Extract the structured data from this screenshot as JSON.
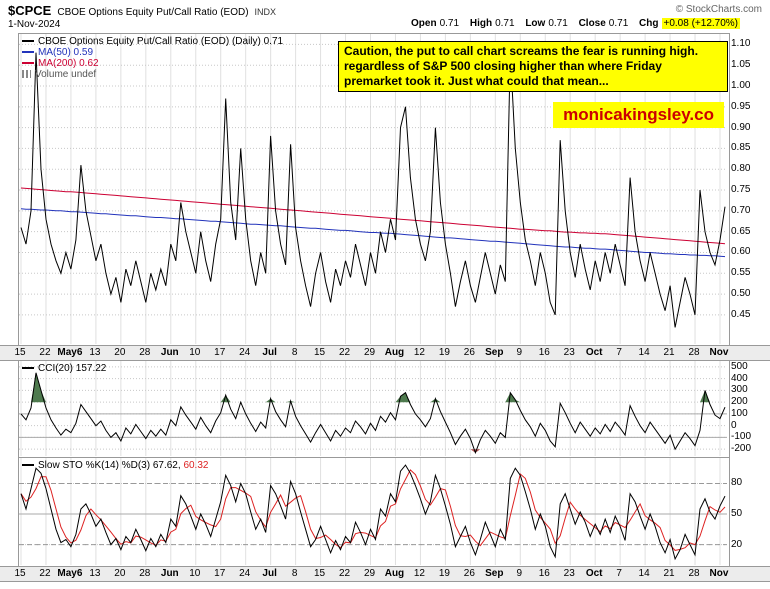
{
  "header": {
    "symbol": "$CPCE",
    "name": "CBOE Options Equity Put/Call Ratio (EOD)",
    "exchange": "INDX",
    "copyright": "© StockCharts.com",
    "date": "1-Nov-2024",
    "quote": {
      "open_label": "Open",
      "open": "0.71",
      "high_label": "High",
      "high": "0.71",
      "low_label": "Low",
      "low": "0.71",
      "close_label": "Close",
      "close": "0.71",
      "chg_label": "Chg",
      "chg": "+0.08 (+12.70%)"
    }
  },
  "main_legend": {
    "series1": "CBOE Options Equity Put/Call Ratio (EOD) (Daily) 0.71",
    "series2": "MA(50) 0.59",
    "series3": "MA(200) 0.62",
    "volume": "Volume undef"
  },
  "annotation": {
    "text": "Caution, the put to call chart screams the fear is running high. regardless of S&P 500 closing higher than where Friday premarket took it. Just what could that mean...",
    "watermark": "monicakingsley.co"
  },
  "cci_legend": "CCI(20) 157.22",
  "sto_legend": {
    "k": "Slow STO %K(14) %D(3) 67.62,",
    "d": "60.32"
  },
  "colors": {
    "cpce": "#000000",
    "ma50": "#2233bb",
    "ma200": "#cc0033",
    "cci": "#000000",
    "cci_fill_high": "#4e7a4e",
    "cci_fill_low": "#b05050",
    "sto_k": "#000000",
    "sto_d": "#dd2222",
    "annotation_bg": "#ffff00",
    "watermark": "#cc0000",
    "highlight": "#ffff00"
  },
  "chart_data": [
    {
      "type": "line",
      "title": "CBOE Options Equity Put/Call Ratio (EOD) (Daily)",
      "ylim": [
        0.38,
        1.125
      ],
      "y_ticks": [
        1.1,
        1.05,
        1.0,
        0.95,
        0.9,
        0.85,
        0.8,
        0.75,
        0.7,
        0.65,
        0.6,
        0.55,
        0.5,
        0.45
      ],
      "x_ticks": [
        "15",
        "22",
        "May6",
        "13",
        "20",
        "28",
        "Jun",
        "10",
        "17",
        "24",
        "Jul",
        "8",
        "15",
        "22",
        "29",
        "Aug",
        "12",
        "19",
        "26",
        "Sep",
        "9",
        "16",
        "23",
        "Oct",
        "7",
        "14",
        "21",
        "28",
        "Nov"
      ],
      "series": [
        {
          "name": "CPCE",
          "color": "#000000",
          "last": 0.71,
          "values": [
            0.66,
            0.62,
            0.7,
            1.08,
            0.8,
            0.68,
            0.62,
            0.58,
            0.55,
            0.6,
            0.56,
            0.63,
            0.81,
            0.7,
            0.64,
            0.58,
            0.62,
            0.55,
            0.5,
            0.54,
            0.48,
            0.56,
            0.52,
            0.58,
            0.53,
            0.48,
            0.55,
            0.51,
            0.56,
            0.52,
            0.62,
            0.58,
            0.72,
            0.65,
            0.6,
            0.55,
            0.65,
            0.58,
            0.53,
            0.62,
            0.68,
            0.97,
            0.72,
            0.63,
            0.85,
            0.68,
            0.58,
            0.52,
            0.6,
            0.55,
            0.88,
            0.7,
            0.62,
            0.57,
            0.86,
            0.66,
            0.58,
            0.52,
            0.47,
            0.55,
            0.6,
            0.53,
            0.48,
            0.56,
            0.52,
            0.58,
            0.54,
            0.62,
            0.57,
            0.52,
            0.6,
            0.55,
            0.65,
            0.6,
            0.68,
            0.63,
            0.9,
            0.95,
            0.78,
            0.68,
            0.62,
            0.58,
            0.65,
            0.9,
            0.72,
            0.62,
            0.55,
            0.47,
            0.53,
            0.58,
            0.52,
            0.48,
            0.54,
            0.6,
            0.55,
            0.5,
            0.57,
            0.53,
            1.08,
            0.85,
            0.72,
            0.63,
            0.58,
            0.52,
            0.6,
            0.55,
            0.48,
            0.45,
            0.87,
            0.7,
            0.6,
            0.54,
            0.62,
            0.56,
            0.51,
            0.58,
            0.53,
            0.6,
            0.55,
            0.62,
            0.57,
            0.52,
            0.78,
            0.65,
            0.58,
            0.53,
            0.6,
            0.55,
            0.5,
            0.46,
            0.52,
            0.42,
            0.48,
            0.54,
            0.5,
            0.45,
            0.75,
            0.65,
            0.6,
            0.57,
            0.63,
            0.71
          ]
        },
        {
          "name": "MA50",
          "color": "#2233bb",
          "last": 0.59,
          "values": [
            0.705,
            0.704,
            0.704,
            0.703,
            0.702,
            0.702,
            0.701,
            0.7,
            0.7,
            0.699,
            0.698,
            0.698,
            0.697,
            0.696,
            0.695,
            0.694,
            0.693,
            0.693,
            0.692,
            0.691,
            0.69,
            0.689,
            0.688,
            0.688,
            0.687,
            0.686,
            0.685,
            0.684,
            0.684,
            0.683,
            0.682,
            0.681,
            0.681,
            0.68,
            0.679,
            0.678,
            0.677,
            0.676,
            0.675,
            0.675,
            0.674,
            0.673,
            0.672,
            0.671,
            0.67,
            0.669,
            0.668,
            0.668,
            0.667,
            0.666,
            0.665,
            0.664,
            0.664,
            0.663,
            0.662,
            0.661,
            0.66,
            0.659,
            0.658,
            0.658,
            0.657,
            0.656,
            0.655,
            0.654,
            0.653,
            0.653,
            0.652,
            0.651,
            0.65,
            0.649,
            0.648,
            0.648,
            0.647,
            0.646,
            0.646,
            0.645,
            0.644,
            0.643,
            0.642,
            0.641,
            0.64,
            0.639,
            0.638,
            0.637,
            0.636,
            0.635,
            0.635,
            0.634,
            0.633,
            0.632,
            0.631,
            0.63,
            0.629,
            0.628,
            0.627,
            0.627,
            0.626,
            0.625,
            0.624,
            0.623,
            0.622,
            0.621,
            0.62,
            0.619,
            0.618,
            0.617,
            0.616,
            0.615,
            0.614,
            0.613,
            0.613,
            0.612,
            0.611,
            0.61,
            0.61,
            0.609,
            0.608,
            0.608,
            0.607,
            0.606,
            0.605,
            0.604,
            0.603,
            0.602,
            0.601,
            0.6,
            0.6,
            0.599,
            0.598,
            0.597,
            0.597,
            0.596,
            0.595,
            0.595,
            0.594,
            0.594,
            0.593,
            0.593,
            0.592,
            0.592,
            0.591,
            0.59
          ]
        },
        {
          "name": "MA200",
          "color": "#cc0033",
          "last": 0.62,
          "values": [
            0.755,
            0.754,
            0.753,
            0.752,
            0.751,
            0.75,
            0.749,
            0.748,
            0.747,
            0.746,
            0.746,
            0.745,
            0.744,
            0.743,
            0.742,
            0.741,
            0.74,
            0.739,
            0.738,
            0.737,
            0.736,
            0.735,
            0.734,
            0.733,
            0.732,
            0.731,
            0.73,
            0.729,
            0.728,
            0.727,
            0.726,
            0.725,
            0.724,
            0.723,
            0.722,
            0.721,
            0.72,
            0.719,
            0.718,
            0.717,
            0.716,
            0.715,
            0.714,
            0.713,
            0.712,
            0.711,
            0.71,
            0.709,
            0.708,
            0.707,
            0.706,
            0.705,
            0.704,
            0.703,
            0.702,
            0.701,
            0.7,
            0.699,
            0.698,
            0.697,
            0.696,
            0.695,
            0.694,
            0.693,
            0.692,
            0.691,
            0.69,
            0.689,
            0.688,
            0.687,
            0.686,
            0.685,
            0.684,
            0.683,
            0.682,
            0.681,
            0.68,
            0.679,
            0.678,
            0.677,
            0.676,
            0.675,
            0.674,
            0.673,
            0.672,
            0.671,
            0.67,
            0.669,
            0.668,
            0.667,
            0.666,
            0.665,
            0.664,
            0.663,
            0.662,
            0.661,
            0.66,
            0.659,
            0.658,
            0.657,
            0.656,
            0.656,
            0.655,
            0.654,
            0.653,
            0.652,
            0.652,
            0.651,
            0.65,
            0.649,
            0.649,
            0.648,
            0.647,
            0.647,
            0.646,
            0.646,
            0.645,
            0.645,
            0.644,
            0.643,
            0.642,
            0.641,
            0.64,
            0.639,
            0.638,
            0.637,
            0.636,
            0.635,
            0.634,
            0.633,
            0.632,
            0.631,
            0.63,
            0.629,
            0.628,
            0.627,
            0.626,
            0.625,
            0.624,
            0.623,
            0.622,
            0.621
          ]
        }
      ]
    },
    {
      "type": "line",
      "title": "CCI(20)",
      "last_value": 157.22,
      "ylim": [
        -258,
        550
      ],
      "y_ticks": [
        500,
        400,
        300,
        200,
        100,
        0,
        -100,
        -200
      ],
      "solid_lines": [
        100,
        -100
      ],
      "fill_above": 200,
      "fill_above_color": "#4e7a4e",
      "fill_below": -200,
      "fill_below_color": "#b05050",
      "series": [
        {
          "name": "CCI",
          "color": "#000000",
          "values": [
            100,
            50,
            150,
            450,
            300,
            150,
            50,
            -20,
            -80,
            -30,
            -60,
            20,
            180,
            120,
            60,
            0,
            40,
            -40,
            -100,
            -60,
            -130,
            -20,
            -70,
            10,
            -50,
            -110,
            -40,
            -90,
            -30,
            -80,
            50,
            0,
            160,
            90,
            30,
            -30,
            70,
            0,
            -60,
            40,
            110,
            260,
            140,
            60,
            200,
            100,
            20,
            -50,
            30,
            -20,
            230,
            120,
            50,
            -10,
            210,
            80,
            0,
            -70,
            -140,
            -60,
            10,
            -60,
            -130,
            -40,
            -90,
            -20,
            -60,
            40,
            -10,
            -70,
            20,
            -40,
            80,
            30,
            110,
            50,
            250,
            280,
            180,
            100,
            50,
            -10,
            60,
            230,
            120,
            30,
            -60,
            -160,
            -90,
            -30,
            -110,
            -230,
            -120,
            -40,
            -90,
            -150,
            -60,
            -100,
            280,
            220,
            130,
            50,
            -10,
            -90,
            20,
            -40,
            -130,
            -180,
            190,
            110,
            20,
            -60,
            30,
            -30,
            -90,
            -20,
            -70,
            10,
            -50,
            30,
            -20,
            -80,
            170,
            80,
            0,
            -60,
            30,
            -30,
            -90,
            -150,
            -80,
            -200,
            -130,
            -60,
            -110,
            -170,
            -40,
            300,
            180,
            90,
            60,
            157.22
          ]
        }
      ]
    },
    {
      "type": "line",
      "title": "Slow STO %K(14) %D(3)",
      "last_k": 67.62,
      "last_d": 60.32,
      "ylim": [
        0,
        105
      ],
      "y_ticks": [
        80,
        50,
        20
      ],
      "dashed_lines": [
        80,
        20
      ],
      "solid_lines": [
        50
      ],
      "series": [
        {
          "name": "K",
          "color": "#000000",
          "values": [
            70,
            55,
            75,
            95,
            90,
            75,
            55,
            35,
            22,
            25,
            18,
            30,
            55,
            60,
            50,
            38,
            45,
            32,
            20,
            26,
            15,
            28,
            22,
            35,
            25,
            14,
            26,
            18,
            30,
            22,
            45,
            38,
            68,
            60,
            48,
            35,
            50,
            40,
            28,
            45,
            62,
            88,
            78,
            62,
            80,
            70,
            52,
            35,
            45,
            32,
            78,
            70,
            58,
            45,
            82,
            70,
            52,
            35,
            18,
            25,
            38,
            25,
            12,
            24,
            15,
            28,
            22,
            42,
            32,
            20,
            35,
            25,
            55,
            48,
            70,
            62,
            92,
            98,
            90,
            78,
            65,
            50,
            62,
            88,
            75,
            58,
            40,
            18,
            28,
            38,
            22,
            10,
            25,
            42,
            30,
            18,
            35,
            25,
            85,
            95,
            88,
            72,
            55,
            35,
            50,
            38,
            18,
            8,
            60,
            70,
            55,
            40,
            52,
            42,
            28,
            40,
            30,
            45,
            32,
            48,
            38,
            24,
            70,
            62,
            48,
            35,
            50,
            38,
            22,
            12,
            25,
            6,
            15,
            30,
            20,
            10,
            55,
            65,
            52,
            45,
            58,
            67.62
          ]
        },
        {
          "name": "D",
          "color": "#dd2222",
          "sma_of_first": 3
        }
      ]
    }
  ]
}
